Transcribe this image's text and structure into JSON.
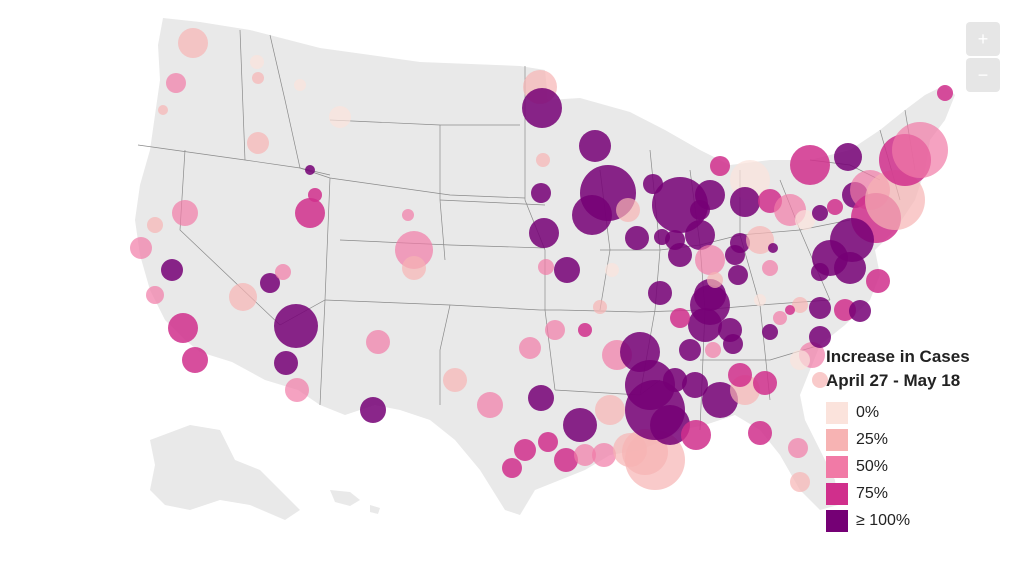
{
  "controls": {
    "zoom_in": "+",
    "zoom_out": "−"
  },
  "legend": {
    "title_line1": "Increase in Cases",
    "title_line2": "April 27 - May 18",
    "items": [
      {
        "label": "0%",
        "color": "#fbe3dc"
      },
      {
        "label": "25%",
        "color": "#f7b3b3"
      },
      {
        "label": "50%",
        "color": "#f17aa6"
      },
      {
        "label": "75%",
        "color": "#d02f8c"
      },
      {
        "label": "≥ 100%",
        "color": "#750075"
      }
    ]
  },
  "bubble_colors": [
    "#fbe3dc",
    "#f7b3b3",
    "#f17aa6",
    "#d02f8c",
    "#750075"
  ],
  "bubble_count": 120
}
